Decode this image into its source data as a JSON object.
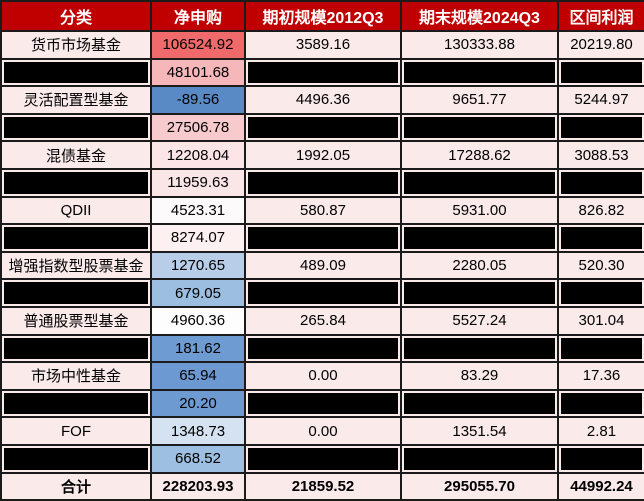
{
  "table": {
    "headers": [
      "分类",
      "净申购",
      "期初规模2012Q3",
      "期末规模2024Q3",
      "区间利润"
    ],
    "column_keys": [
      "category",
      "net",
      "initial",
      "final",
      "profit"
    ],
    "rows": [
      {
        "category": "货币市场基金",
        "net": "106524.92",
        "net_bg": "#F0696B",
        "initial": "3589.16",
        "final": "130333.88",
        "profit": "20219.80"
      },
      {
        "net": "48101.68",
        "net_bg": "#F5B7BA",
        "redacted": [
          "category",
          "initial",
          "final",
          "profit"
        ]
      },
      {
        "category": "灵活配置型基金",
        "net": "-89.56",
        "net_bg": "#5A8AC6",
        "initial": "4496.36",
        "final": "9651.77",
        "profit": "5244.97"
      },
      {
        "net": "27506.78",
        "net_bg": "#F7CBCD",
        "redacted": [
          "category",
          "initial",
          "final",
          "profit"
        ]
      },
      {
        "category": "混债基金",
        "net": "12208.04",
        "net_bg": "#FBE5E6",
        "initial": "1992.05",
        "final": "17288.62",
        "profit": "3088.53"
      },
      {
        "net": "11959.63",
        "net_bg": "#FBE6E7",
        "redacted": [
          "category",
          "initial",
          "final",
          "profit"
        ]
      },
      {
        "category": "QDII",
        "net": "4523.31",
        "net_bg": "#FDFAFB",
        "initial": "580.87",
        "final": "5931.00",
        "profit": "826.82"
      },
      {
        "net": "8274.07",
        "net_bg": "#FCF0F1",
        "redacted": [
          "category",
          "initial",
          "final",
          "profit"
        ]
      },
      {
        "category": "增强指数型股票基金",
        "net": "1270.65",
        "net_bg": "#B7CDE8",
        "initial": "489.09",
        "final": "2280.05",
        "profit": "520.30"
      },
      {
        "net": "679.05",
        "net_bg": "#9CBEE1",
        "redacted": [
          "category",
          "initial",
          "final",
          "profit"
        ]
      },
      {
        "category": "普通股票型基金",
        "net": "4960.36",
        "net_bg": "#FEFDFE",
        "initial": "265.84",
        "final": "5527.24",
        "profit": "301.04"
      },
      {
        "net": "181.62",
        "net_bg": "#6E9BD2",
        "redacted": [
          "category",
          "initial",
          "final",
          "profit"
        ]
      },
      {
        "category": "市场中性基金",
        "net": "65.94",
        "net_bg": "#6C99D1",
        "initial": "0.00",
        "final": "83.29",
        "profit": "17.36"
      },
      {
        "net": "20.20",
        "net_bg": "#6D9AD1",
        "redacted": [
          "category",
          "initial",
          "final",
          "profit"
        ]
      },
      {
        "category": "FOF",
        "net": "1348.73",
        "net_bg": "#D4E2F1",
        "initial": "0.00",
        "final": "1351.54",
        "profit": "2.81"
      },
      {
        "net": "668.52",
        "net_bg": "#9DBFE2",
        "redacted": [
          "category",
          "initial",
          "final",
          "profit"
        ]
      },
      {
        "category": "合计",
        "net": "228203.93",
        "initial": "21859.52",
        "final": "295055.70",
        "profit": "44992.24",
        "total": true
      }
    ]
  },
  "colors": {
    "header_bg": "#C00000",
    "header_text": "#FFFFFF",
    "row_bg": "#FAEAEA",
    "grid": "#1B1B1B",
    "redaction": "#000000",
    "scale_max_red": "#F0696B",
    "scale_mid_white": "#FCFCFF",
    "scale_min_blue": "#5A8AC6"
  }
}
